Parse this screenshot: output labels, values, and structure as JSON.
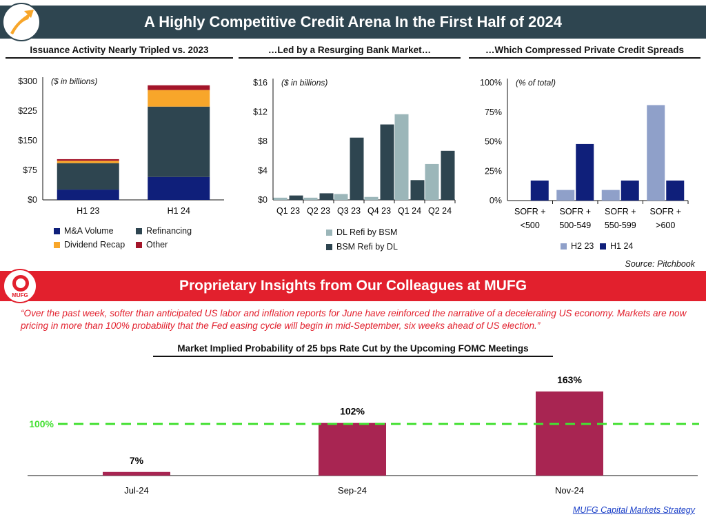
{
  "header": {
    "title": "A Highly Competitive Credit Arena In the First Half of 2024"
  },
  "colors": {
    "banner_dark": "#2e4550",
    "banner_red": "#e2202d",
    "navy": "#0f1f7a",
    "dark_teal": "#2e4550",
    "orange": "#f8a62a",
    "maroon": "#a3152a",
    "light_teal": "#9bb6b9",
    "periwinkle": "#8fa0c9",
    "bar_red": "#a82552",
    "threshold_green": "#44e033"
  },
  "mufg_logo_text": "MUFG",
  "source_note": "Source: Pitchbook",
  "insights": {
    "banner": "Proprietary Insights from Our Colleagues at MUFG",
    "quote": "“Over the past week, softer than anticipated US labor and inflation reports for June have reinforced the narrative of a decelerating US economy. Markets are now pricing in more than 100% probability that the Fed easing cycle will begin in mid-September, six weeks ahead of US election.”"
  },
  "footer": {
    "link": "MUFG Capital Markets Strategy"
  },
  "chart_data": [
    {
      "id": "issuance",
      "type": "stacked-bar",
      "title": "Issuance Activity Nearly Tripled vs. 2023",
      "unit_note": "($ in billions)",
      "categories": [
        "H1 23",
        "H1 24"
      ],
      "yticks": [
        "$0",
        "$75",
        "$150",
        "$225",
        "$300"
      ],
      "ylim": [
        0,
        300
      ],
      "series": [
        {
          "name": "M&A Volume",
          "color": "#0f1f7a",
          "values": [
            26,
            58
          ]
        },
        {
          "name": "Refinancing",
          "color": "#2e4550",
          "values": [
            67,
            178
          ]
        },
        {
          "name": "Dividend Recap",
          "color": "#f8a62a",
          "values": [
            6,
            42
          ]
        },
        {
          "name": "Other",
          "color": "#a3152a",
          "values": [
            4,
            12
          ]
        }
      ],
      "legend": [
        "M&A Volume",
        "Refinancing",
        "Dividend Recap",
        "Other"
      ]
    },
    {
      "id": "bank-market",
      "type": "bar",
      "title": "…Led by a Resurging Bank Market…",
      "unit_note": "($ in billions)",
      "categories": [
        "Q1 23",
        "Q2 23",
        "Q3 23",
        "Q4 23",
        "Q1 24",
        "Q2 24"
      ],
      "yticks": [
        "$0",
        "$4",
        "$8",
        "$12",
        "$16"
      ],
      "ylim": [
        0,
        16
      ],
      "series": [
        {
          "name": "DL Refi by BSM",
          "color": "#9bb6b9",
          "values": [
            0.3,
            0.3,
            0.8,
            0.4,
            11.7,
            4.9
          ]
        },
        {
          "name": "BSM Refi by DL",
          "color": "#2e4550",
          "values": [
            0.6,
            0.9,
            8.5,
            10.3,
            2.7,
            6.7
          ]
        }
      ],
      "legend": [
        "DL Refi by BSM",
        "BSM Refi by DL"
      ]
    },
    {
      "id": "spreads",
      "type": "bar",
      "title": "…Which Compressed Private Credit Spreads",
      "unit_note": "(% of total)",
      "categories": [
        [
          "SOFR +",
          "<500"
        ],
        [
          "SOFR +",
          "500-549"
        ],
        [
          "SOFR +",
          "550-599"
        ],
        [
          "SOFR +",
          ">600"
        ]
      ],
      "yticks": [
        "0%",
        "25%",
        "50%",
        "75%",
        "100%"
      ],
      "ylim": [
        0,
        100
      ],
      "series": [
        {
          "name": "H2 23",
          "color": "#8fa0c9",
          "values": [
            0,
            9,
            9,
            81
          ]
        },
        {
          "name": "H1 24",
          "color": "#0f1f7a",
          "values": [
            17,
            48,
            17,
            17
          ]
        }
      ],
      "legend": [
        "H2 23",
        "H1 24"
      ]
    },
    {
      "id": "fomc",
      "type": "bar",
      "title": "Market Implied Probability of 25 bps Rate Cut by the Upcoming FOMC Meetings",
      "categories": [
        "Jul-24",
        "Sep-24",
        "Nov-24"
      ],
      "values": [
        7,
        102,
        163
      ],
      "value_labels": [
        "7%",
        "102%",
        "163%"
      ],
      "color": "#a82552",
      "threshold": {
        "value": 100,
        "label": "100%",
        "color": "#44e033"
      },
      "ylim": [
        0,
        180
      ]
    }
  ]
}
